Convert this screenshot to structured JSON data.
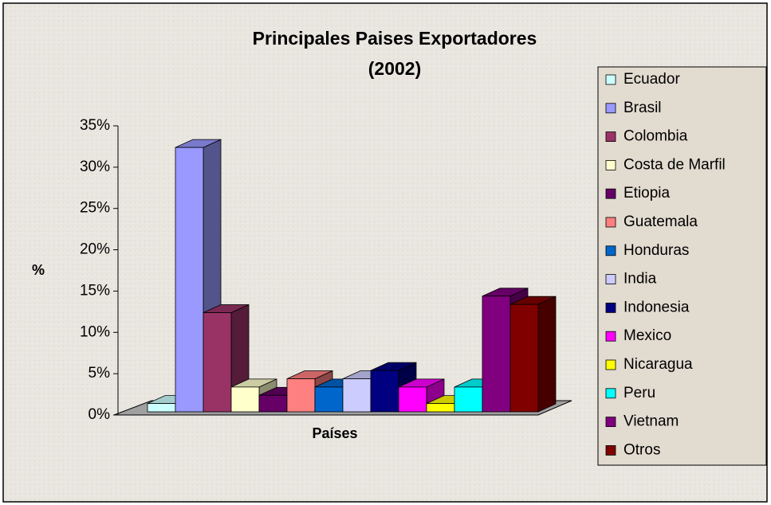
{
  "chart_data": {
    "type": "bar3d",
    "title": "Principales Paises Exportadores",
    "subtitle": "(2002)",
    "y_label": "%",
    "x_label": "Países",
    "categories": [
      "Ecuador",
      "Brasil",
      "Colombia",
      "Costa de Marfil",
      "Etiopia",
      "Guatemala",
      "Honduras",
      "India",
      "Indonesia",
      "Mexico",
      "Nicaragua",
      "Peru",
      "Vietnam",
      "Otros"
    ],
    "values": [
      1,
      32,
      12,
      3,
      2,
      4,
      3,
      4,
      5,
      3,
      1,
      3,
      14,
      13
    ],
    "colors": [
      "#ccffff",
      "#9999ff",
      "#993366",
      "#ffffcc",
      "#660066",
      "#ff8080",
      "#0066cc",
      "#ccccff",
      "#000080",
      "#ff00ff",
      "#ffff00",
      "#00ffff",
      "#800080",
      "#800000"
    ],
    "ylim": [
      0,
      35
    ],
    "yticks": [
      {
        "value": 0,
        "label": "0%"
      },
      {
        "value": 5,
        "label": "5%"
      },
      {
        "value": 10,
        "label": "10%"
      },
      {
        "value": 15,
        "label": "15%"
      },
      {
        "value": 20,
        "label": "20%"
      },
      {
        "value": 25,
        "label": "25%"
      },
      {
        "value": 30,
        "label": "30%"
      },
      {
        "value": 35,
        "label": "35%"
      }
    ],
    "legend": "right"
  }
}
